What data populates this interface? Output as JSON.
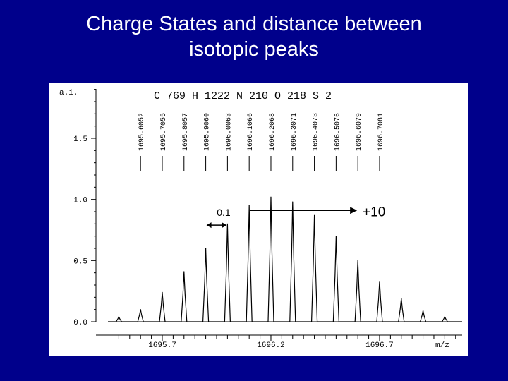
{
  "slide": {
    "title_line1": "Charge States and distance between",
    "title_line2": "isotopic peaks"
  },
  "colors": {
    "background": "#00008b",
    "panel": "#ffffff",
    "ink": "#000000",
    "title_text": "#ffffff"
  },
  "chart_data": {
    "type": "line",
    "title": "C 769 H 1222 N 210 O 218 S 2",
    "ylabel": "a.i.",
    "xlabel": "m/z",
    "xlim": [
      1695.45,
      1697.08
    ],
    "ylim": [
      0,
      1.95
    ],
    "grid": false,
    "y_ticks": [
      {
        "value": 0.0,
        "label": "0.0"
      },
      {
        "value": 0.5,
        "label": "0.5"
      },
      {
        "value": 1.0,
        "label": "1.0"
      },
      {
        "value": 1.5,
        "label": "1.5"
      }
    ],
    "x_ticks": [
      {
        "value": 1695.7,
        "label": "1695.7"
      },
      {
        "value": 1696.2,
        "label": "1696.2"
      },
      {
        "value": 1696.7,
        "label": "1696.7"
      }
    ],
    "series": [
      {
        "x": [
          1695.5,
          1695.6,
          1695.7,
          1695.8,
          1695.9,
          1696.0,
          1696.1,
          1696.2,
          1696.3,
          1696.4,
          1696.5,
          1696.6,
          1696.7,
          1696.8,
          1696.9,
          1697.0
        ],
        "y": [
          0.04,
          0.1,
          0.24,
          0.41,
          0.6,
          0.8,
          0.95,
          1.02,
          0.98,
          0.87,
          0.7,
          0.5,
          0.33,
          0.19,
          0.09,
          0.04
        ]
      }
    ],
    "peak_labels": [
      {
        "x": 1695.6,
        "label": "1695.6052"
      },
      {
        "x": 1695.7,
        "label": "1695.7055"
      },
      {
        "x": 1695.8,
        "label": "1695.8057"
      },
      {
        "x": 1695.9,
        "label": "1695.9060"
      },
      {
        "x": 1696.0,
        "label": "1696.0063"
      },
      {
        "x": 1696.1,
        "label": "1696.1066"
      },
      {
        "x": 1696.2,
        "label": "1696.2068"
      },
      {
        "x": 1696.3,
        "label": "1696.3071"
      },
      {
        "x": 1696.4,
        "label": "1696.4073"
      },
      {
        "x": 1696.5,
        "label": "1696.5076"
      },
      {
        "x": 1696.6,
        "label": "1696.6079"
      },
      {
        "x": 1696.7,
        "label": "1696.7081"
      }
    ],
    "annotations": [
      {
        "kind": "double-arrow",
        "x_from": 1695.9,
        "x_to": 1696.0,
        "y": 0.79,
        "label": "0.1"
      },
      {
        "kind": "arrow",
        "x_from": 1696.1,
        "x_to": 1696.6,
        "y": 0.91,
        "label": "+10"
      }
    ]
  }
}
